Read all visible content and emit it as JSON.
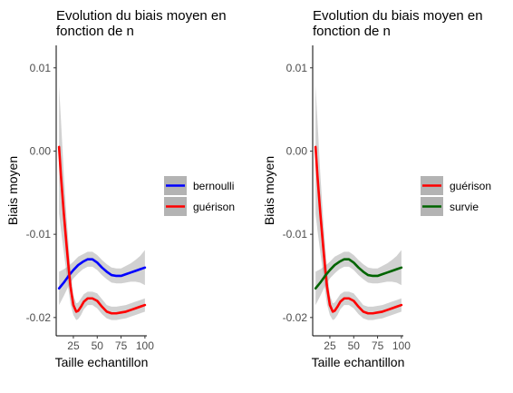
{
  "chart_data": [
    {
      "type": "line",
      "title": "Evolution du biais moyen en fonction de n",
      "title_lines": [
        "Evolution du biais moyen en",
        "fonction de n"
      ],
      "xlabel": "Taille echantillon",
      "ylabel": "Biais moyen",
      "xlim": [
        7,
        102
      ],
      "ylim": [
        -0.0222,
        0.0127
      ],
      "x_ticks": [
        25,
        50,
        75,
        100
      ],
      "y_ticks": [
        0.01,
        0.0,
        -0.01,
        -0.02
      ],
      "y_tick_labels": [
        "0.01",
        "0.00",
        "-0.01",
        "-0.02"
      ],
      "grid": false,
      "legend": "right",
      "series": [
        {
          "name": "bernoulli",
          "color": "#0000ff",
          "x": [
            10,
            15,
            20,
            25,
            30,
            35,
            40,
            45,
            50,
            55,
            60,
            65,
            70,
            75,
            80,
            85,
            90,
            95,
            100
          ],
          "y": [
            -0.0165,
            -0.0158,
            -0.015,
            -0.0143,
            -0.0137,
            -0.0133,
            -0.013,
            -0.013,
            -0.0134,
            -0.014,
            -0.0145,
            -0.0149,
            -0.015,
            -0.015,
            -0.0148,
            -0.0146,
            -0.0144,
            -0.0142,
            -0.014
          ],
          "ci_lower": [
            -0.0185,
            -0.0174,
            -0.0162,
            -0.0153,
            -0.0147,
            -0.0142,
            -0.0139,
            -0.0139,
            -0.0143,
            -0.0149,
            -0.0154,
            -0.0158,
            -0.0159,
            -0.0159,
            -0.0158,
            -0.0157,
            -0.0157,
            -0.0158,
            -0.0161
          ],
          "ci_upper": [
            -0.0145,
            -0.0142,
            -0.0138,
            -0.0133,
            -0.0127,
            -0.0124,
            -0.0121,
            -0.0121,
            -0.0125,
            -0.0131,
            -0.0136,
            -0.014,
            -0.0141,
            -0.0141,
            -0.0138,
            -0.0135,
            -0.0131,
            -0.0126,
            -0.0119
          ]
        },
        {
          "name": "guérison",
          "color": "#ff0000",
          "x": [
            10,
            12,
            15,
            18,
            20,
            22,
            25,
            28,
            30,
            33,
            36,
            40,
            45,
            50,
            55,
            60,
            65,
            70,
            75,
            80,
            85,
            90,
            95,
            100
          ],
          "y": [
            0.0005,
            -0.003,
            -0.0075,
            -0.0115,
            -0.014,
            -0.0163,
            -0.0185,
            -0.0193,
            -0.0192,
            -0.0187,
            -0.0181,
            -0.0177,
            -0.0177,
            -0.018,
            -0.0187,
            -0.0193,
            -0.0195,
            -0.0195,
            -0.0194,
            -0.0193,
            -0.0191,
            -0.0189,
            -0.0187,
            -0.0185
          ],
          "ci_lower": [
            -0.0075,
            -0.0095,
            -0.0122,
            -0.0148,
            -0.0168,
            -0.0184,
            -0.0197,
            -0.0203,
            -0.0202,
            -0.0197,
            -0.019,
            -0.0185,
            -0.0185,
            -0.0189,
            -0.0196,
            -0.0201,
            -0.0203,
            -0.0203,
            -0.0202,
            -0.0201,
            -0.0199,
            -0.0197,
            -0.0195,
            -0.0193
          ],
          "ci_upper": [
            0.0078,
            0.0037,
            -0.0028,
            -0.0082,
            -0.0112,
            -0.0142,
            -0.0173,
            -0.0183,
            -0.0182,
            -0.0177,
            -0.0172,
            -0.0169,
            -0.0169,
            -0.0171,
            -0.0178,
            -0.0185,
            -0.0187,
            -0.0187,
            -0.0186,
            -0.0185,
            -0.0183,
            -0.0181,
            -0.0179,
            -0.0177
          ]
        }
      ]
    },
    {
      "type": "line",
      "title": "Evolution du biais moyen en fonction de n",
      "title_lines": [
        "Evolution du biais moyen en",
        "fonction de n"
      ],
      "xlabel": "Taille echantillon",
      "ylabel": "Biais moyen",
      "xlim": [
        7,
        102
      ],
      "ylim": [
        -0.0222,
        0.0127
      ],
      "x_ticks": [
        25,
        50,
        75,
        100
      ],
      "y_ticks": [
        0.01,
        0.0,
        -0.01,
        -0.02
      ],
      "y_tick_labels": [
        "0.01",
        "0.00",
        "-0.01",
        "-0.02"
      ],
      "grid": false,
      "legend": "right",
      "series": [
        {
          "name": "guérison",
          "color": "#ff0000",
          "x": [
            10,
            12,
            15,
            18,
            20,
            22,
            25,
            28,
            30,
            33,
            36,
            40,
            45,
            50,
            55,
            60,
            65,
            70,
            75,
            80,
            85,
            90,
            95,
            100
          ],
          "y": [
            0.0005,
            -0.003,
            -0.0075,
            -0.0115,
            -0.014,
            -0.0163,
            -0.0185,
            -0.0193,
            -0.0192,
            -0.0187,
            -0.0181,
            -0.0177,
            -0.0177,
            -0.018,
            -0.0187,
            -0.0193,
            -0.0195,
            -0.0195,
            -0.0194,
            -0.0193,
            -0.0191,
            -0.0189,
            -0.0187,
            -0.0185
          ],
          "ci_lower": [
            -0.0075,
            -0.0095,
            -0.0122,
            -0.0148,
            -0.0168,
            -0.0184,
            -0.0197,
            -0.0203,
            -0.0202,
            -0.0197,
            -0.019,
            -0.0185,
            -0.0185,
            -0.0189,
            -0.0196,
            -0.0201,
            -0.0203,
            -0.0203,
            -0.0202,
            -0.0201,
            -0.0199,
            -0.0197,
            -0.0195,
            -0.0193
          ],
          "ci_upper": [
            0.0078,
            0.0037,
            -0.0028,
            -0.0082,
            -0.0112,
            -0.0142,
            -0.0173,
            -0.0183,
            -0.0182,
            -0.0177,
            -0.0172,
            -0.0169,
            -0.0169,
            -0.0171,
            -0.0178,
            -0.0185,
            -0.0187,
            -0.0187,
            -0.0186,
            -0.0185,
            -0.0183,
            -0.0181,
            -0.0179,
            -0.0177
          ]
        },
        {
          "name": "survie",
          "color": "#006400",
          "x": [
            10,
            15,
            20,
            25,
            30,
            35,
            40,
            45,
            50,
            55,
            60,
            65,
            70,
            75,
            80,
            85,
            90,
            95,
            100
          ],
          "y": [
            -0.0165,
            -0.0158,
            -0.015,
            -0.0143,
            -0.0137,
            -0.0133,
            -0.013,
            -0.013,
            -0.0134,
            -0.014,
            -0.0145,
            -0.0149,
            -0.015,
            -0.015,
            -0.0148,
            -0.0146,
            -0.0144,
            -0.0142,
            -0.014
          ],
          "ci_lower": [
            -0.0185,
            -0.0174,
            -0.0162,
            -0.0153,
            -0.0147,
            -0.0142,
            -0.0139,
            -0.0139,
            -0.0143,
            -0.0149,
            -0.0154,
            -0.0158,
            -0.0159,
            -0.0159,
            -0.0158,
            -0.0157,
            -0.0157,
            -0.0158,
            -0.0161
          ],
          "ci_upper": [
            -0.0145,
            -0.0142,
            -0.0138,
            -0.0133,
            -0.0127,
            -0.0124,
            -0.0121,
            -0.0121,
            -0.0125,
            -0.0131,
            -0.0136,
            -0.014,
            -0.0141,
            -0.0141,
            -0.0138,
            -0.0135,
            -0.0131,
            -0.0126,
            -0.0119
          ]
        }
      ]
    }
  ]
}
